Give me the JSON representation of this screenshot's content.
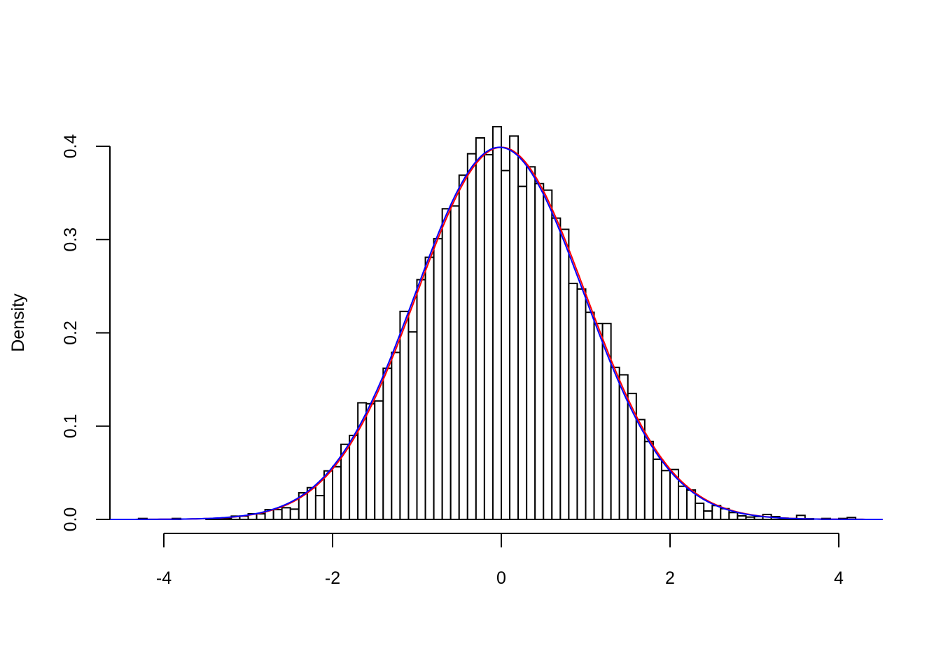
{
  "chart_data": {
    "type": "bar",
    "subtype": "histogram-with-density-curves",
    "title": "",
    "xlabel": "",
    "ylabel": "Density",
    "xlim": [
      -4.64,
      4.53
    ],
    "ylim": [
      0,
      0.4
    ],
    "grid": false,
    "x_ticks": [
      "-4",
      "-2",
      "0",
      "2",
      "4"
    ],
    "x_tick_values": [
      -4,
      -2,
      0,
      2,
      4
    ],
    "y_ticks": [
      "0.0",
      "0.1",
      "0.2",
      "0.3",
      "0.4"
    ],
    "y_tick_values": [
      0,
      0.1,
      0.2,
      0.3,
      0.4
    ],
    "bin_width": 0.1,
    "first_break": -4.3,
    "densities": [
      0.001,
      0,
      0,
      0,
      0.001,
      0,
      0,
      0,
      0.0005,
      0.0005,
      0.001,
      0.0035,
      0.0035,
      0.006,
      0.006,
      0.0105,
      0.0105,
      0.0125,
      0.011,
      0.0285,
      0.034,
      0.0255,
      0.052,
      0.0565,
      0.0805,
      0.09,
      0.125,
      0.124,
      0.127,
      0.162,
      0.179,
      0.223,
      0.201,
      0.257,
      0.281,
      0.301,
      0.333,
      0.336,
      0.369,
      0.392,
      0.409,
      0.391,
      0.421,
      0.374,
      0.411,
      0.357,
      0.378,
      0.36,
      0.353,
      0.323,
      0.311,
      0.253,
      0.247,
      0.222,
      0.21,
      0.21,
      0.163,
      0.155,
      0.135,
      0.107,
      0.0835,
      0.0645,
      0.0523,
      0.0535,
      0.0355,
      0.0315,
      0.0173,
      0.009,
      0.0148,
      0.0115,
      0.0073,
      0.0038,
      0.0025,
      0.003,
      0.0053,
      0.003,
      0.0013,
      0.0008,
      0.0043,
      0.0008,
      0,
      0.001,
      0,
      0.001,
      0.002
    ],
    "curves": [
      {
        "color": "#ff0000",
        "kind": "normal",
        "mean": 0,
        "sd": 1
      },
      {
        "color": "#0000ff",
        "kind": "normal",
        "mean": -0.02,
        "sd": 1.0
      }
    ],
    "bar_fill": "#ffffff",
    "bar_stroke": "#000000"
  }
}
